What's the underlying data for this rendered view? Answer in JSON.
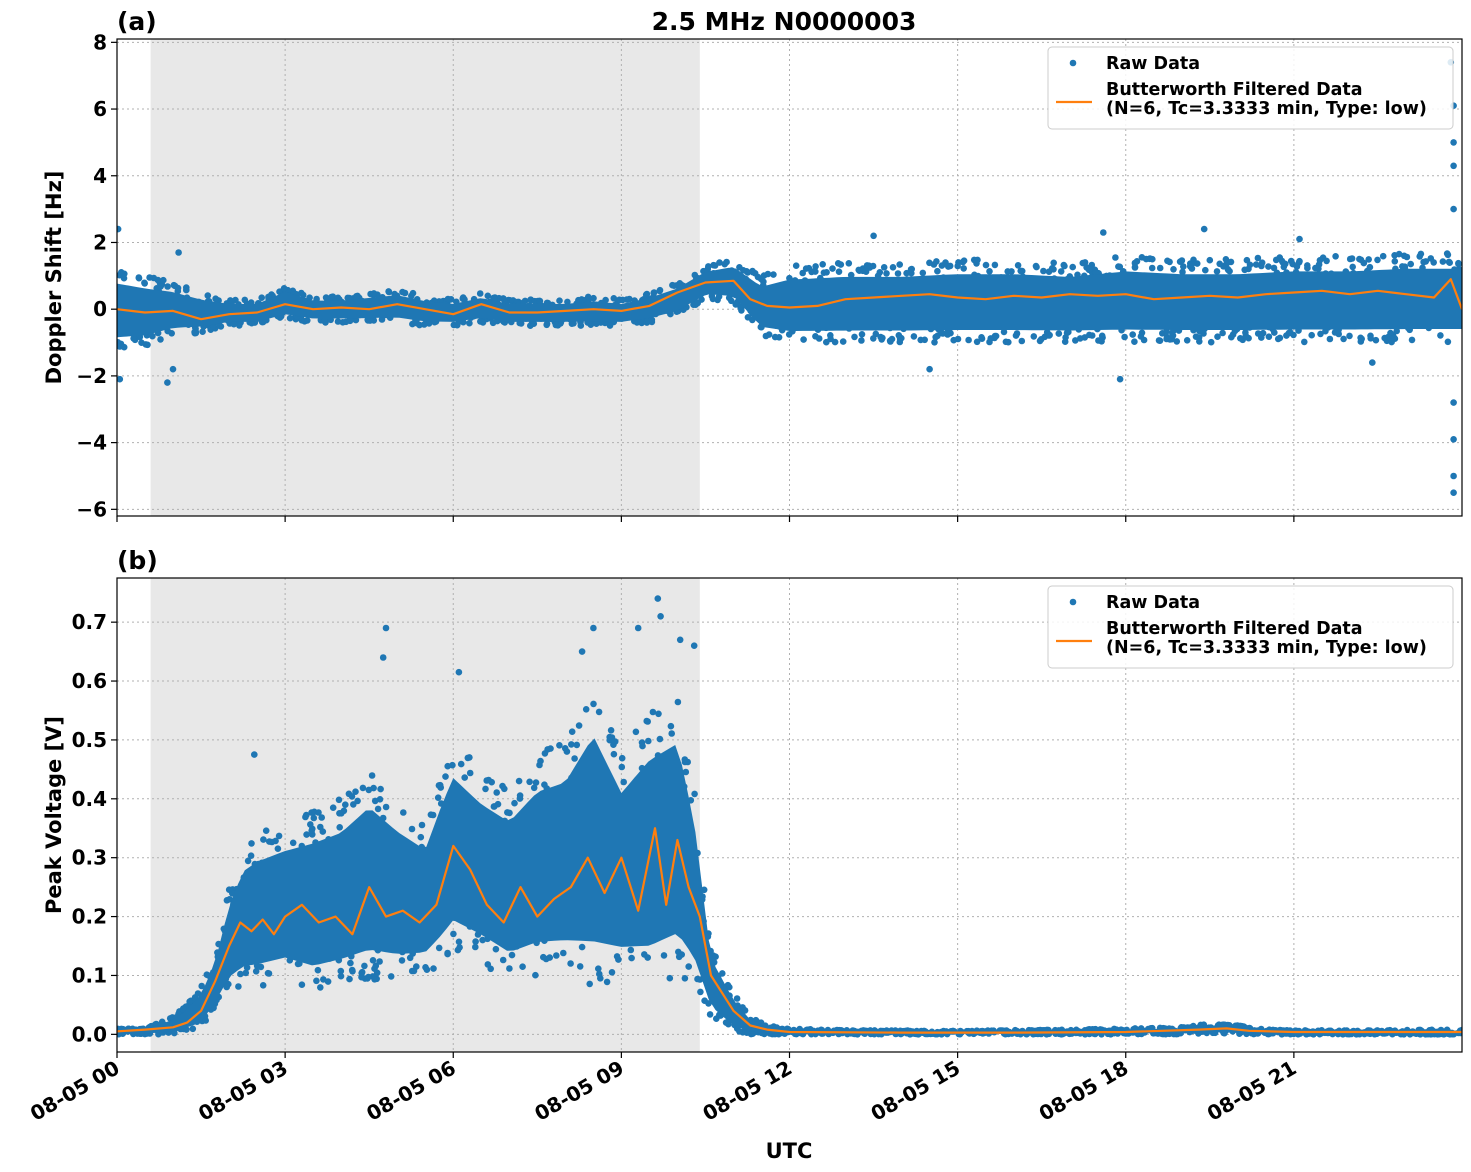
{
  "figure": {
    "title": "2.5 MHz N0000003",
    "xlabel": "UTC"
  },
  "colors": {
    "raw": "#1f77b4",
    "filtered": "#ff7f0e",
    "shade": "#e8e8e8",
    "grid": "#b0b0b0"
  },
  "chart_data": [
    {
      "type": "scatter",
      "panel_label": "(a)",
      "ylabel": "Doppler Shift [Hz]",
      "xlim_hours": [
        0,
        24
      ],
      "ylim": [
        -6.2,
        8.1
      ],
      "x_ticks": [
        "08-05 00",
        "08-05 03",
        "08-05 06",
        "08-05 09",
        "08-05 12",
        "08-05 15",
        "08-05 18",
        "08-05 21"
      ],
      "y_ticks": [
        "−6",
        "−4",
        "−2",
        "0",
        "2",
        "4",
        "6",
        "8"
      ],
      "y_tick_values": [
        -6,
        -4,
        -2,
        0,
        2,
        4,
        6,
        8
      ],
      "grid": true,
      "shaded_span_hours": [
        0.6,
        10.4
      ],
      "legend": {
        "position": "upper right",
        "entries": [
          "Raw Data",
          "Butterworth Filtered Data",
          "(N=6, Tc=3.3333 min, Type: low)"
        ]
      },
      "series": [
        {
          "name": "Raw Data",
          "kind": "scatter-band",
          "x_hours": [
            0,
            0.5,
            1,
            1.5,
            2,
            2.5,
            3,
            3.5,
            4,
            4.5,
            5,
            5.5,
            6,
            6.5,
            7,
            7.5,
            8,
            8.5,
            9,
            9.5,
            10,
            10.5,
            11,
            11.5,
            12,
            13,
            14,
            15,
            16,
            17,
            18,
            19,
            20,
            21,
            22,
            23,
            24
          ],
          "y_upper": [
            1.2,
            1.0,
            0.8,
            0.5,
            0.3,
            0.3,
            0.7,
            0.4,
            0.4,
            0.5,
            0.6,
            0.4,
            0.3,
            0.5,
            0.3,
            0.3,
            0.3,
            0.4,
            0.3,
            0.5,
            0.8,
            1.3,
            1.5,
            1.0,
            1.3,
            1.4,
            1.4,
            1.5,
            1.5,
            1.4,
            1.6,
            1.5,
            1.5,
            1.6,
            1.6,
            1.7,
            1.7
          ],
          "y_lower": [
            -1.2,
            -1.1,
            -0.8,
            -0.7,
            -0.5,
            -0.5,
            -0.3,
            -0.4,
            -0.4,
            -0.4,
            -0.4,
            -0.5,
            -0.5,
            -0.4,
            -0.5,
            -0.5,
            -0.5,
            -0.5,
            -0.5,
            -0.4,
            -0.2,
            0.3,
            0.2,
            -0.8,
            -1.0,
            -1.0,
            -1.0,
            -1.0,
            -1.0,
            -1.0,
            -1.0,
            -1.0,
            -1.0,
            -1.0,
            -1.0,
            -1.0,
            -1.0
          ],
          "outliers": [
            [
              0.02,
              2.4
            ],
            [
              0.05,
              -2.1
            ],
            [
              0.9,
              -2.2
            ],
            [
              1.1,
              1.7
            ],
            [
              1.0,
              -1.8
            ],
            [
              13.5,
              2.2
            ],
            [
              14.5,
              -1.8
            ],
            [
              17.9,
              -2.1
            ],
            [
              17.6,
              2.3
            ],
            [
              19.4,
              2.4
            ],
            [
              21.1,
              2.1
            ],
            [
              22.4,
              -1.6
            ],
            [
              23.8,
              7.4
            ],
            [
              23.85,
              6.1
            ],
            [
              23.85,
              5.0
            ],
            [
              23.85,
              4.3
            ],
            [
              23.85,
              3.0
            ],
            [
              23.85,
              -2.8
            ],
            [
              23.85,
              -3.9
            ],
            [
              23.85,
              -5.0
            ],
            [
              23.85,
              -5.5
            ]
          ]
        },
        {
          "name": "Butterworth Filtered Data",
          "kind": "line",
          "x_hours": [
            0,
            0.5,
            1,
            1.5,
            2,
            2.5,
            3,
            3.5,
            4,
            4.5,
            5,
            5.5,
            6,
            6.5,
            7,
            7.5,
            8,
            8.5,
            9,
            9.5,
            10,
            10.5,
            11,
            11.3,
            11.6,
            12,
            12.5,
            13,
            13.5,
            14,
            14.5,
            15,
            15.5,
            16,
            16.5,
            17,
            17.5,
            18,
            18.5,
            19,
            19.5,
            20,
            20.5,
            21,
            21.5,
            22,
            22.5,
            23,
            23.5,
            23.8,
            24
          ],
          "y": [
            0.0,
            -0.1,
            -0.05,
            -0.3,
            -0.15,
            -0.1,
            0.15,
            0.0,
            0.05,
            0.0,
            0.15,
            0.0,
            -0.15,
            0.15,
            -0.1,
            -0.1,
            -0.05,
            0.0,
            -0.05,
            0.1,
            0.5,
            0.8,
            0.85,
            0.3,
            0.1,
            0.05,
            0.1,
            0.3,
            0.35,
            0.4,
            0.45,
            0.35,
            0.3,
            0.4,
            0.35,
            0.45,
            0.4,
            0.45,
            0.3,
            0.35,
            0.4,
            0.35,
            0.45,
            0.5,
            0.55,
            0.45,
            0.55,
            0.45,
            0.35,
            0.9,
            0.0
          ]
        }
      ]
    },
    {
      "type": "scatter",
      "panel_label": "(b)",
      "ylabel": "Peak Voltage [V]",
      "xlim_hours": [
        0,
        24
      ],
      "ylim": [
        -0.03,
        0.775
      ],
      "x_ticks": [
        "08-05 00",
        "08-05 03",
        "08-05 06",
        "08-05 09",
        "08-05 12",
        "08-05 15",
        "08-05 18",
        "08-05 21"
      ],
      "y_ticks": [
        "0.0",
        "0.1",
        "0.2",
        "0.3",
        "0.4",
        "0.5",
        "0.6",
        "0.7"
      ],
      "y_tick_values": [
        0,
        0.1,
        0.2,
        0.3,
        0.4,
        0.5,
        0.6,
        0.7
      ],
      "grid": true,
      "shaded_span_hours": [
        0.6,
        10.4
      ],
      "legend": {
        "position": "upper right",
        "entries": [
          "Raw Data",
          "Butterworth Filtered Data",
          "(N=6, Tc=3.3333 min, Type: low)"
        ]
      },
      "series": [
        {
          "name": "Raw Data",
          "kind": "scatter-band",
          "x_hours": [
            0,
            0.5,
            1,
            1.25,
            1.5,
            1.75,
            2,
            2.25,
            2.5,
            3,
            3.5,
            4,
            4.5,
            5,
            5.5,
            5.8,
            6,
            6.5,
            7,
            7.5,
            8,
            8.5,
            9,
            9.5,
            10,
            10.3,
            10.6,
            11,
            11.3,
            11.6,
            12,
            13,
            15,
            17,
            19,
            19.5,
            20,
            20.5,
            21,
            22,
            24
          ],
          "y_upper": [
            0.01,
            0.01,
            0.03,
            0.05,
            0.08,
            0.14,
            0.25,
            0.32,
            0.34,
            0.36,
            0.38,
            0.4,
            0.45,
            0.4,
            0.36,
            0.45,
            0.5,
            0.45,
            0.42,
            0.48,
            0.5,
            0.6,
            0.48,
            0.55,
            0.58,
            0.42,
            0.15,
            0.07,
            0.03,
            0.015,
            0.01,
            0.007,
            0.006,
            0.008,
            0.012,
            0.018,
            0.015,
            0.008,
            0.007,
            0.007,
            0.008
          ],
          "y_lower": [
            0.0,
            0.0,
            0.0,
            0.005,
            0.01,
            0.04,
            0.07,
            0.08,
            0.08,
            0.09,
            0.07,
            0.08,
            0.09,
            0.09,
            0.1,
            0.12,
            0.14,
            0.12,
            0.09,
            0.1,
            0.1,
            0.08,
            0.09,
            0.08,
            0.1,
            0.08,
            0.03,
            0.005,
            0.0,
            0.0,
            0.0,
            0.0,
            0.0,
            0.0,
            0.0,
            0.002,
            0.0,
            0.0,
            0.0,
            0.0,
            0.0
          ],
          "outliers": [
            [
              2.45,
              0.475
            ],
            [
              4.8,
              0.69
            ],
            [
              4.75,
              0.64
            ],
            [
              6.1,
              0.615
            ],
            [
              8.5,
              0.69
            ],
            [
              8.3,
              0.65
            ],
            [
              9.3,
              0.69
            ],
            [
              9.65,
              0.74
            ],
            [
              9.7,
              0.71
            ],
            [
              10.05,
              0.67
            ],
            [
              10.3,
              0.66
            ]
          ]
        },
        {
          "name": "Butterworth Filtered Data",
          "kind": "line",
          "x_hours": [
            0,
            0.5,
            1,
            1.25,
            1.5,
            1.75,
            2.0,
            2.2,
            2.4,
            2.6,
            2.8,
            3.0,
            3.3,
            3.6,
            3.9,
            4.2,
            4.5,
            4.8,
            5.1,
            5.4,
            5.7,
            6.0,
            6.3,
            6.6,
            6.9,
            7.2,
            7.5,
            7.8,
            8.1,
            8.4,
            8.7,
            9.0,
            9.3,
            9.6,
            9.8,
            10.0,
            10.2,
            10.4,
            10.6,
            11.0,
            11.3,
            11.6,
            12,
            14,
            16,
            18,
            19.3,
            19.8,
            20.2,
            21,
            24
          ],
          "y": [
            0.005,
            0.008,
            0.012,
            0.02,
            0.04,
            0.09,
            0.15,
            0.19,
            0.175,
            0.195,
            0.17,
            0.2,
            0.22,
            0.19,
            0.2,
            0.17,
            0.25,
            0.2,
            0.21,
            0.19,
            0.22,
            0.32,
            0.28,
            0.22,
            0.19,
            0.25,
            0.2,
            0.23,
            0.25,
            0.3,
            0.24,
            0.3,
            0.21,
            0.35,
            0.22,
            0.33,
            0.25,
            0.2,
            0.1,
            0.04,
            0.015,
            0.008,
            0.004,
            0.003,
            0.003,
            0.004,
            0.008,
            0.01,
            0.006,
            0.004,
            0.004
          ]
        }
      ]
    }
  ]
}
